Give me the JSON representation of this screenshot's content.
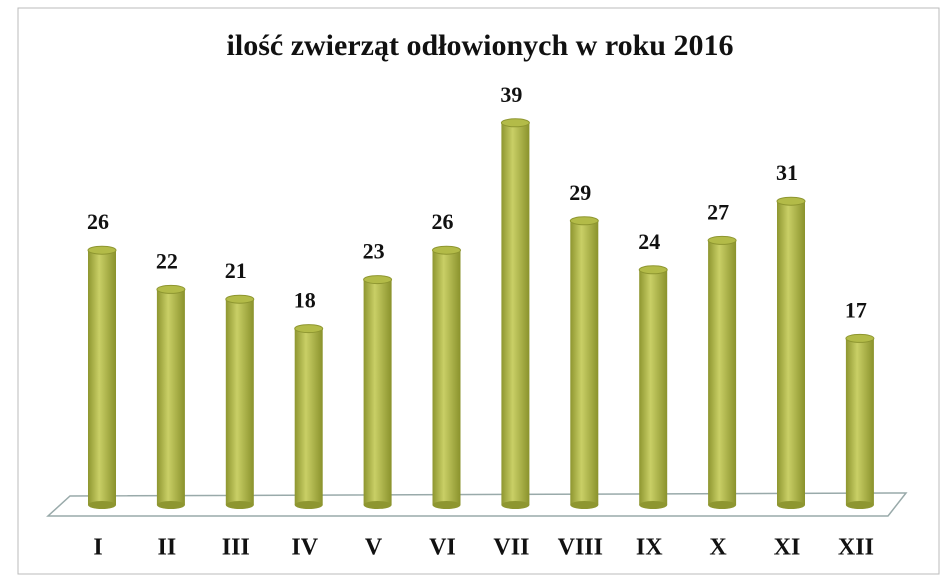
{
  "chart_data": {
    "type": "bar",
    "title": "ilość zwierząt odłowionych w roku 2016",
    "categories": [
      "I",
      "II",
      "III",
      "IV",
      "V",
      "VI",
      "VII",
      "VIII",
      "IX",
      "X",
      "XI",
      "XII"
    ],
    "values": [
      26,
      22,
      21,
      18,
      23,
      26,
      39,
      29,
      24,
      27,
      31,
      17
    ],
    "color": "#b3bb48"
  }
}
